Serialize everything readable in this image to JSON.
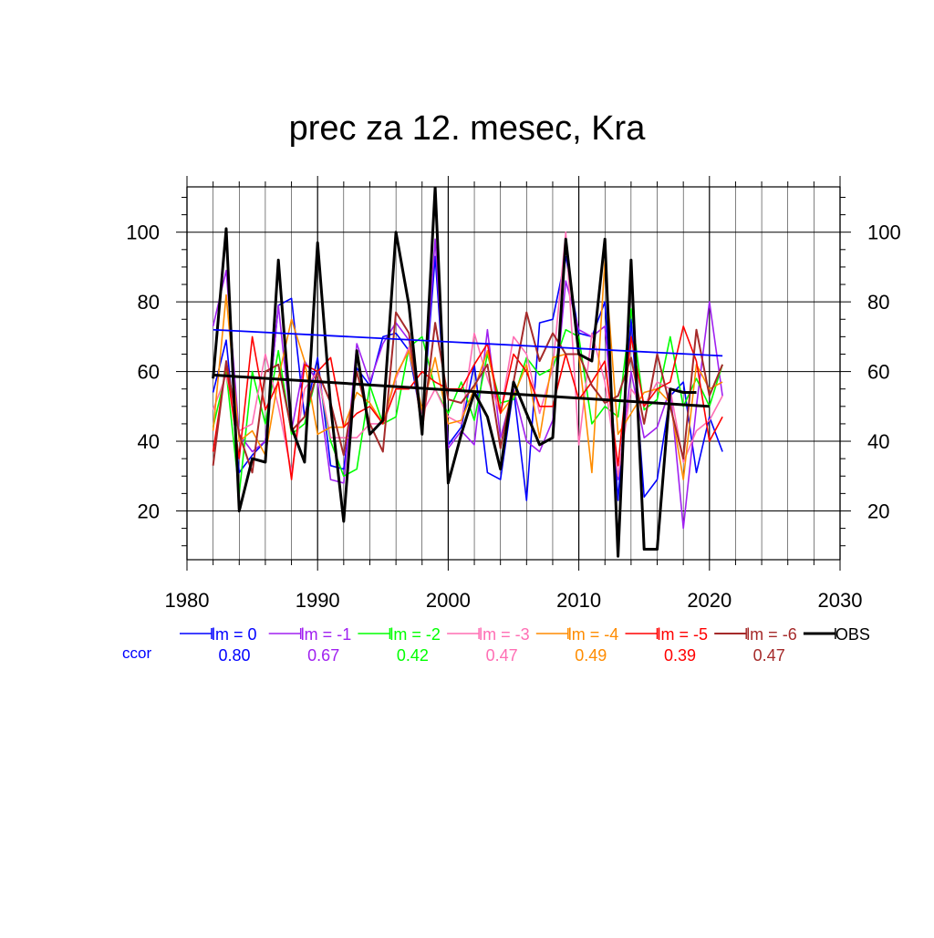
{
  "chart_data": {
    "type": "line",
    "title": "prec za 12. mesec, Kra",
    "xlim": [
      1980,
      2030
    ],
    "ylim": [
      6,
      113
    ],
    "x_ticks": [
      1980,
      1990,
      2000,
      2010,
      2020,
      2030
    ],
    "y_ticks": [
      20,
      40,
      60,
      80,
      100
    ],
    "grid": true,
    "legend_position": "bottom",
    "ccor_label": "ccor",
    "x": [
      1982,
      1983,
      1984,
      1985,
      1986,
      1987,
      1988,
      1989,
      1990,
      1991,
      1992,
      1993,
      1994,
      1995,
      1996,
      1997,
      1998,
      1999,
      2000,
      2001,
      2002,
      2003,
      2004,
      2005,
      2006,
      2007,
      2008,
      2009,
      2010,
      2011,
      2012,
      2013,
      2014,
      2015,
      2016,
      2017,
      2018,
      2019,
      2020,
      2021
    ],
    "series": [
      {
        "name": "lm = 0",
        "color": "#0000ff",
        "width": 1.6,
        "ccor": "0.80",
        "values": [
          54,
          69,
          31,
          36,
          40,
          79,
          81,
          47,
          64,
          33,
          32,
          61,
          56,
          70,
          71,
          66,
          45,
          93,
          39,
          44,
          62,
          31,
          29,
          55,
          23,
          74,
          75,
          93,
          71,
          70,
          80,
          23,
          75,
          24,
          29,
          53,
          57,
          31,
          47,
          37
        ]
      },
      {
        "name": "lm = -1",
        "color": "#a020f0",
        "width": 1.6,
        "ccor": "0.67",
        "values": [
          73,
          89,
          42,
          37,
          40,
          79,
          43,
          63,
          57,
          29,
          28,
          68,
          57,
          68,
          74,
          69,
          45,
          98,
          38,
          43,
          39,
          72,
          41,
          55,
          40,
          37,
          46,
          86,
          72,
          70,
          73,
          29,
          60,
          41,
          44,
          55,
          15,
          50,
          80,
          53
        ]
      },
      {
        "name": "lm = -2",
        "color": "#00ff00",
        "width": 1.6,
        "ccor": "0.42",
        "values": [
          44,
          60,
          25,
          60,
          45,
          66,
          42,
          45,
          60,
          40,
          30,
          32,
          56,
          45,
          47,
          67,
          70,
          55,
          48,
          57,
          46,
          65,
          51,
          52,
          64,
          59,
          61,
          72,
          70,
          45,
          50,
          47,
          78,
          49,
          52,
          70,
          50,
          58,
          50,
          62
        ]
      },
      {
        "name": "lm = -3",
        "color": "#ff6eb4",
        "width": 1.6,
        "ccor": "0.47",
        "values": [
          49,
          59,
          43,
          45,
          65,
          50,
          31,
          55,
          60,
          41,
          41,
          41,
          45,
          45,
          58,
          67,
          48,
          55,
          47,
          45,
          71,
          58,
          48,
          70,
          65,
          48,
          61,
          100,
          39,
          71,
          57,
          30,
          55,
          50,
          57,
          55,
          34,
          43,
          46,
          53
        ]
      },
      {
        "name": "lm = -4",
        "color": "#ff8c00",
        "width": 1.6,
        "ccor": "0.49",
        "values": [
          43,
          82,
          40,
          43,
          36,
          58,
          75,
          63,
          42,
          44,
          44,
          54,
          51,
          45,
          59,
          66,
          49,
          64,
          45,
          46,
          55,
          66,
          48,
          53,
          62,
          41,
          64,
          65,
          65,
          31,
          92,
          42,
          48,
          54,
          55,
          51,
          29,
          62,
          55,
          57
        ]
      },
      {
        "name": "lm = -5",
        "color": "#ff0000",
        "width": 1.6,
        "ccor": "0.39",
        "values": [
          37,
          62,
          35,
          70,
          49,
          57,
          29,
          62,
          60,
          64,
          44,
          48,
          50,
          45,
          55,
          55,
          60,
          57,
          55,
          55,
          62,
          68,
          48,
          65,
          60,
          50,
          50,
          65,
          52,
          57,
          63,
          33,
          70,
          50,
          55,
          57,
          73,
          63,
          40,
          47
        ]
      },
      {
        "name": "lm = -6",
        "color": "#a52a2a",
        "width": 2.0,
        "ccor": "0.47",
        "values": [
          33,
          63,
          42,
          31,
          60,
          62,
          43,
          47,
          60,
          51,
          36,
          60,
          45,
          37,
          77,
          71,
          43,
          74,
          52,
          51,
          56,
          62,
          38,
          57,
          77,
          63,
          71,
          65,
          65,
          56,
          51,
          53,
          64,
          45,
          65,
          50,
          35,
          72,
          53,
          62
        ]
      },
      {
        "name": "OBS",
        "color": "#000000",
        "width": 3.0,
        "ccor": "",
        "values": [
          58,
          101,
          20,
          35,
          34,
          92,
          44,
          34,
          97,
          50,
          17,
          66,
          42,
          46,
          100,
          79,
          42,
          113,
          28,
          42,
          54,
          47,
          32,
          57,
          48,
          39,
          41,
          98,
          65,
          63,
          98,
          7,
          92,
          9,
          9,
          55,
          54,
          54,
          null,
          null
        ]
      }
    ],
    "trend_lines": [
      {
        "name": "lm = 0 trend",
        "color": "#0000ff",
        "width": 1.8,
        "x": [
          1982,
          2021
        ],
        "y": [
          72,
          64.5
        ]
      },
      {
        "name": "OBS trend",
        "color": "#000000",
        "width": 3.0,
        "x": [
          1982,
          2020
        ],
        "y": [
          59,
          50
        ]
      }
    ]
  }
}
